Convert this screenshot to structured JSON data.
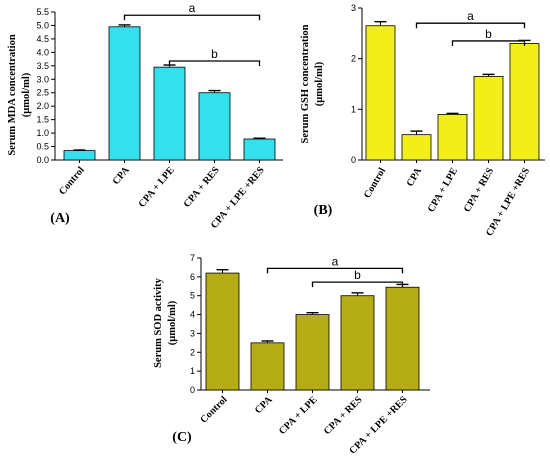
{
  "chart_data": [
    {
      "type": "bar",
      "panel_label": "(A)",
      "ylabel_line1": "Serum MDA concentration",
      "ylabel_line2": "(µmol/ml)",
      "categories": [
        "Control",
        "CPA",
        "CPA + LPE",
        "CPA + RES",
        "CPA + LPE +RES"
      ],
      "values": [
        0.35,
        4.95,
        3.45,
        2.5,
        0.78
      ],
      "errors": [
        0.02,
        0.07,
        0.08,
        0.08,
        0.03
      ],
      "ylim": [
        0,
        5.5
      ],
      "yticks": [
        "0.0",
        "0.5",
        "1.0",
        "1.5",
        "2.0",
        "2.5",
        "3.0",
        "3.5",
        "4.0",
        "4.5",
        "5.0",
        "5.5"
      ],
      "bar_color": "#33e0eb",
      "significance": [
        {
          "label": "a",
          "from": 1,
          "to": 4,
          "y": 5.38
        },
        {
          "label": "b",
          "from": 2,
          "to": 4,
          "y": 3.68
        }
      ]
    },
    {
      "type": "bar",
      "panel_label": "(B)",
      "ylabel_line1": "Serum GSH concentration",
      "ylabel_line2": "(µmol/ml)",
      "categories": [
        "Control",
        "CPA",
        "CPA + LPE",
        "CPA + RES",
        "CPA + LPE +RES"
      ],
      "values": [
        2.65,
        0.5,
        0.9,
        1.65,
        2.3
      ],
      "errors": [
        0.08,
        0.07,
        0.02,
        0.04,
        0.06
      ],
      "ylim": [
        0,
        3
      ],
      "yticks": [
        "0",
        "1",
        "2",
        "3"
      ],
      "bar_color": "#f2ee1a",
      "significance": [
        {
          "label": "a",
          "from": 1,
          "to": 4,
          "y": 2.7
        },
        {
          "label": "b",
          "from": 2,
          "to": 4,
          "y": 2.35
        }
      ]
    },
    {
      "type": "bar",
      "panel_label": "(C)",
      "ylabel_line1": "Serum SOD activity",
      "ylabel_line2": "(µmol/ml)",
      "categories": [
        "Control",
        "CPA",
        "CPA + LPE",
        "CPA + RES",
        "CPA + LPE +RES"
      ],
      "values": [
        6.2,
        2.5,
        4.0,
        5.0,
        5.45
      ],
      "errors": [
        0.18,
        0.1,
        0.1,
        0.15,
        0.15
      ],
      "ylim": [
        0,
        7
      ],
      "yticks": [
        "0",
        "1",
        "2",
        "3",
        "4",
        "5",
        "6",
        "7"
      ],
      "bar_color": "#b5ad14",
      "significance": [
        {
          "label": "a",
          "from": 1,
          "to": 4,
          "y": 6.45
        },
        {
          "label": "b",
          "from": 2,
          "to": 4,
          "y": 5.72
        }
      ]
    }
  ]
}
